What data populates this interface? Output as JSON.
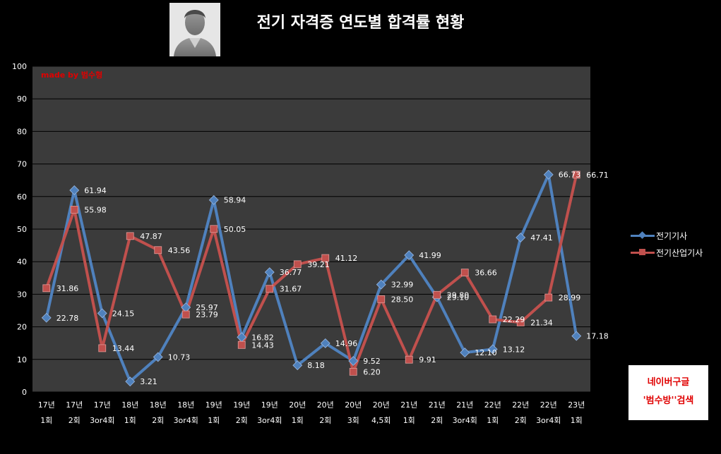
{
  "colors": {
    "series1": "#4f81bd",
    "series2": "#c0504d",
    "plot_bg": "#3b3b3b",
    "grid": "#000000"
  },
  "watermark": {
    "made_by": "made by  범수형"
  },
  "promo": {
    "line1": "네이버구글",
    "line2": "'범수방''검색"
  },
  "chart_data": {
    "type": "line",
    "title": "전기 자격증 연도별 합격률 현황",
    "xlabel": "",
    "ylabel": "",
    "ylim": [
      0,
      100
    ],
    "yticks": [
      0,
      10,
      20,
      30,
      40,
      50,
      60,
      70,
      80,
      90,
      100
    ],
    "grid": true,
    "legend": "right",
    "categories": [
      [
        "17년",
        "1회"
      ],
      [
        "17년",
        "2회"
      ],
      [
        "17년",
        "3or4회"
      ],
      [
        "18년",
        "1회"
      ],
      [
        "18년",
        "2회"
      ],
      [
        "18년",
        "3or4회"
      ],
      [
        "19년",
        "1회"
      ],
      [
        "19년",
        "2회"
      ],
      [
        "19년",
        "3or4회"
      ],
      [
        "20년",
        "1회"
      ],
      [
        "20년",
        "2회"
      ],
      [
        "20년",
        "3회"
      ],
      [
        "20년",
        "4,5회"
      ],
      [
        "21년",
        "1회"
      ],
      [
        "21년",
        "2회"
      ],
      [
        "21년",
        "3or4회"
      ],
      [
        "22년",
        "1회"
      ],
      [
        "22년",
        "2회"
      ],
      [
        "22년",
        "3or4회"
      ],
      [
        "23년",
        "1회"
      ]
    ],
    "series": [
      {
        "name": "전기기사",
        "marker": "diamond",
        "values": [
          22.78,
          61.94,
          24.15,
          3.21,
          10.73,
          25.97,
          58.94,
          16.82,
          36.77,
          8.18,
          14.96,
          9.52,
          32.99,
          41.99,
          29.1,
          12.1,
          13.12,
          47.41,
          66.73,
          17.18
        ],
        "labels": [
          "22.78",
          "61.94",
          "24.15",
          "3.21",
          "10.73",
          "25.97",
          "58.94",
          "16.82",
          "36.77",
          "8.18",
          "14.96",
          "9.52",
          "32.99",
          "41.99",
          "29.10",
          "12.10",
          "13.12",
          "47.41",
          "66.73",
          "17.18"
        ]
      },
      {
        "name": "전기산업기사",
        "marker": "square",
        "values": [
          31.86,
          55.98,
          13.44,
          47.87,
          43.56,
          23.79,
          50.05,
          14.43,
          31.67,
          39.21,
          41.12,
          6.2,
          28.5,
          9.91,
          29.8,
          36.66,
          22.29,
          21.34,
          28.99,
          66.71
        ],
        "labels": [
          "31.86",
          "55.98",
          "13.44",
          "47.87",
          "43.56",
          "23.79",
          "50.05",
          "14.43",
          "31.67",
          "39.21",
          "41.12",
          "6.20",
          "28.50",
          "9.91",
          "29.80",
          "36.66",
          "22.29",
          "21.34",
          "28.99",
          "66.71"
        ]
      }
    ]
  }
}
